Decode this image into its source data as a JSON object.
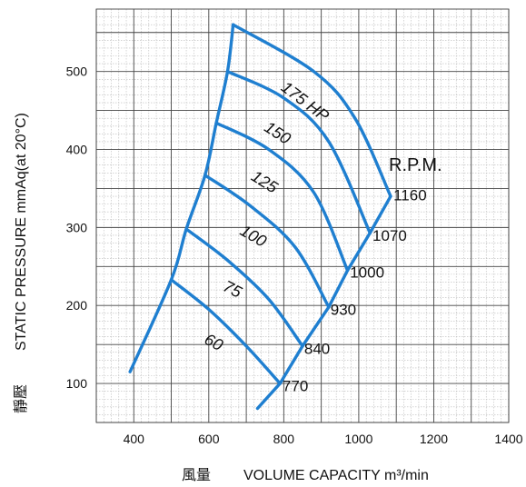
{
  "chart_data": {
    "type": "line",
    "title": "",
    "xlabel": "VOLUME CAPACITY m³/min",
    "xlabel_cjk": "風量",
    "ylabel": "STATIC PRESSURE mmAq(at 20°C)",
    "ylabel_cjk": "靜壓",
    "xlim": [
      300,
      1400
    ],
    "ylim": [
      50,
      580
    ],
    "x_ticks": [
      400,
      600,
      800,
      1000,
      1200,
      1400
    ],
    "y_ticks": [
      100,
      200,
      300,
      400,
      500
    ],
    "grid": true,
    "rpm_header": "R.P.M.",
    "colors": {
      "curve": "#1f7fd0",
      "grid_major": "#444444",
      "grid_minor": "#bbbbbb"
    },
    "power_curves": [
      {
        "name": "60",
        "points": [
          [
            500,
            233
          ],
          [
            600,
            195
          ],
          [
            700,
            148
          ],
          [
            790,
            100
          ]
        ]
      },
      {
        "name": "75",
        "points": [
          [
            540,
            298
          ],
          [
            650,
            258
          ],
          [
            760,
            208
          ],
          [
            850,
            148
          ]
        ]
      },
      {
        "name": "100",
        "points": [
          [
            590,
            367
          ],
          [
            710,
            328
          ],
          [
            830,
            275
          ],
          [
            920,
            198
          ]
        ]
      },
      {
        "name": "125",
        "points": [
          [
            620,
            434
          ],
          [
            760,
            400
          ],
          [
            880,
            345
          ],
          [
            970,
            245
          ]
        ]
      },
      {
        "name": "150",
        "points": [
          [
            650,
            500
          ],
          [
            800,
            466
          ],
          [
            920,
            410
          ],
          [
            1030,
            293
          ]
        ]
      },
      {
        "name": "175 HP",
        "points": [
          [
            665,
            560
          ],
          [
            880,
            500
          ],
          [
            990,
            440
          ],
          [
            1085,
            340
          ]
        ]
      }
    ],
    "rpm_curves": [
      {
        "name": "1160",
        "points": [
          [
            1085,
            340
          ],
          [
            1030,
            293
          ]
        ]
      },
      {
        "name": "1070",
        "points": [
          [
            1030,
            293
          ],
          [
            970,
            245
          ]
        ]
      },
      {
        "name": "1000",
        "points": [
          [
            970,
            245
          ],
          [
            920,
            198
          ]
        ]
      },
      {
        "name": "930",
        "points": [
          [
            920,
            198
          ],
          [
            850,
            148
          ]
        ]
      },
      {
        "name": "840",
        "points": [
          [
            850,
            148
          ],
          [
            790,
            100
          ]
        ]
      },
      {
        "name": "770",
        "points": [
          [
            790,
            100
          ],
          [
            730,
            68
          ]
        ]
      }
    ],
    "left_envelope": {
      "points": [
        [
          390,
          115
        ],
        [
          500,
          233
        ],
        [
          540,
          298
        ],
        [
          590,
          367
        ],
        [
          620,
          434
        ],
        [
          650,
          500
        ],
        [
          665,
          560
        ]
      ]
    },
    "hp_labels": [
      {
        "text": "60",
        "x": 585,
        "y": 152,
        "angle": 27
      },
      {
        "text": "75",
        "x": 635,
        "y": 220,
        "angle": 27
      },
      {
        "text": "100",
        "x": 680,
        "y": 292,
        "angle": 30
      },
      {
        "text": "125",
        "x": 710,
        "y": 362,
        "angle": 32
      },
      {
        "text": "150",
        "x": 745,
        "y": 425,
        "angle": 33
      },
      {
        "text": "175 HP",
        "x": 790,
        "y": 477,
        "angle": 37
      }
    ],
    "rpm_labels": [
      {
        "text": "1160",
        "x": 1078,
        "y": 342
      },
      {
        "text": "1070",
        "x": 1022,
        "y": 290
      },
      {
        "text": "1000",
        "x": 962,
        "y": 243
      },
      {
        "text": "930",
        "x": 910,
        "y": 195
      },
      {
        "text": "840",
        "x": 840,
        "y": 145
      },
      {
        "text": "770",
        "x": 782,
        "y": 97
      }
    ]
  }
}
